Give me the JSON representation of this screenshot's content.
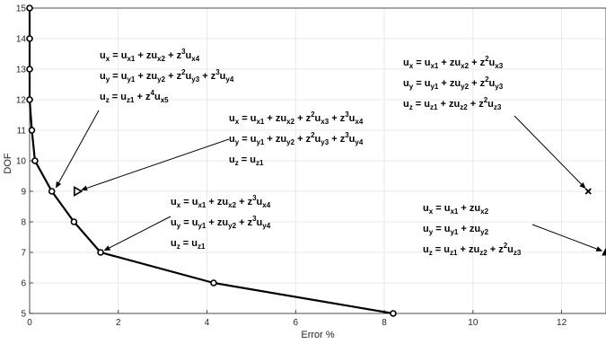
{
  "chart_data": {
    "type": "line",
    "xlabel": "Error %",
    "ylabel": "DOF",
    "xlim": [
      0,
      13
    ],
    "ylim": [
      5,
      15
    ],
    "x_ticks": [
      "0",
      "2",
      "4",
      "6",
      "8",
      "10",
      "12"
    ],
    "y_ticks": [
      "5",
      "6",
      "7",
      "8",
      "9",
      "10",
      "11",
      "12",
      "13",
      "14",
      "15"
    ],
    "grid": true,
    "series": [
      {
        "marker": "circle",
        "x": [
          8.2,
          4.15,
          1.6,
          1.0,
          0.5,
          0.12,
          0.05,
          0.0,
          0.0,
          0.0,
          0.0
        ],
        "y": [
          5,
          6,
          7,
          8,
          9,
          10,
          11,
          12,
          13,
          14,
          15
        ]
      }
    ],
    "extra_points": [
      {
        "marker": "triangle-right",
        "x": 1.08,
        "y": 9
      },
      {
        "marker": "x",
        "x": 12.6,
        "y": 9
      },
      {
        "marker": "triangle-up",
        "x": 13.0,
        "y": 7
      }
    ],
    "annotations": [
      {
        "target": [
          0.55,
          9.0
        ],
        "lines": [
          [
            [
              "u",
              ""
            ],
            [
              "x",
              "sub"
            ],
            [
              " = u",
              ""
            ],
            [
              "x1",
              "sub"
            ],
            [
              " + zu",
              ""
            ],
            [
              "x2",
              "sub"
            ],
            [
              " + z",
              ""
            ],
            [
              "3",
              "sup"
            ],
            [
              "u",
              ""
            ],
            [
              "x4",
              "sub"
            ]
          ],
          [
            [
              "u",
              ""
            ],
            [
              "y",
              "sub"
            ],
            [
              " = u",
              ""
            ],
            [
              "y1",
              "sub"
            ],
            [
              " + zu",
              ""
            ],
            [
              "y2",
              "sub"
            ],
            [
              " + z",
              ""
            ],
            [
              "2",
              "sup"
            ],
            [
              "u",
              ""
            ],
            [
              "y3",
              "sub"
            ],
            [
              " + z",
              ""
            ],
            [
              "3",
              "sup"
            ],
            [
              "u",
              ""
            ],
            [
              "y4",
              "sub"
            ]
          ],
          [
            [
              "u",
              ""
            ],
            [
              "z",
              "sub"
            ],
            [
              " = u",
              ""
            ],
            [
              "z1",
              "sub"
            ],
            [
              " + z",
              ""
            ],
            [
              "4",
              "sup"
            ],
            [
              "u",
              ""
            ],
            [
              "x5",
              "sub"
            ]
          ]
        ]
      },
      {
        "target": [
          1.08,
          9.0
        ],
        "lines": [
          [
            [
              "u",
              ""
            ],
            [
              "x",
              "sub"
            ],
            [
              " = u",
              ""
            ],
            [
              "x1",
              "sub"
            ],
            [
              " + zu",
              ""
            ],
            [
              "x2",
              "sub"
            ],
            [
              " + z",
              ""
            ],
            [
              "2",
              "sup"
            ],
            [
              "u",
              ""
            ],
            [
              "x3",
              "sub"
            ],
            [
              " + z",
              ""
            ],
            [
              "3",
              "sup"
            ],
            [
              "u",
              ""
            ],
            [
              "x4",
              "sub"
            ]
          ],
          [
            [
              "u",
              ""
            ],
            [
              "y",
              "sub"
            ],
            [
              " = u",
              ""
            ],
            [
              "y1",
              "sub"
            ],
            [
              " + zu",
              ""
            ],
            [
              "y2",
              "sub"
            ],
            [
              " + z",
              ""
            ],
            [
              "2",
              "sup"
            ],
            [
              "u",
              ""
            ],
            [
              "y3",
              "sub"
            ],
            [
              " + z",
              ""
            ],
            [
              "3",
              "sup"
            ],
            [
              "u",
              ""
            ],
            [
              "y4",
              "sub"
            ]
          ],
          [
            [
              "u",
              ""
            ],
            [
              "z",
              "sub"
            ],
            [
              " = u",
              ""
            ],
            [
              "z1",
              "sub"
            ]
          ]
        ]
      },
      {
        "target": [
          1.6,
          7.0
        ],
        "lines": [
          [
            [
              "u",
              ""
            ],
            [
              "x",
              "sub"
            ],
            [
              " = u",
              ""
            ],
            [
              "x1",
              "sub"
            ],
            [
              " + zu",
              ""
            ],
            [
              "x2",
              "sub"
            ],
            [
              " + z",
              ""
            ],
            [
              "3",
              "sup"
            ],
            [
              "u",
              ""
            ],
            [
              "x4",
              "sub"
            ]
          ],
          [
            [
              "u",
              ""
            ],
            [
              "y",
              "sub"
            ],
            [
              " = u",
              ""
            ],
            [
              "y1",
              "sub"
            ],
            [
              " + zu",
              ""
            ],
            [
              "y2",
              "sub"
            ],
            [
              " + z",
              ""
            ],
            [
              "3",
              "sup"
            ],
            [
              "u",
              ""
            ],
            [
              "y4",
              "sub"
            ]
          ],
          [
            [
              "u",
              ""
            ],
            [
              "z",
              "sub"
            ],
            [
              " = u",
              ""
            ],
            [
              "z1",
              "sub"
            ]
          ]
        ]
      },
      {
        "target": [
          12.6,
          9.0
        ],
        "lines": [
          [
            [
              "u",
              ""
            ],
            [
              "x",
              "sub"
            ],
            [
              " = u",
              ""
            ],
            [
              "x1",
              "sub"
            ],
            [
              " + zu",
              ""
            ],
            [
              "x2",
              "sub"
            ],
            [
              " + z",
              ""
            ],
            [
              "2",
              "sup"
            ],
            [
              "u",
              ""
            ],
            [
              "x3",
              "sub"
            ]
          ],
          [
            [
              "u",
              ""
            ],
            [
              "y",
              "sub"
            ],
            [
              " = u",
              ""
            ],
            [
              "y1",
              "sub"
            ],
            [
              " + zu",
              ""
            ],
            [
              "y2",
              "sub"
            ],
            [
              " + z",
              ""
            ],
            [
              "2",
              "sup"
            ],
            [
              "u",
              ""
            ],
            [
              "y3",
              "sub"
            ]
          ],
          [
            [
              "u",
              ""
            ],
            [
              "z",
              "sub"
            ],
            [
              " = u",
              ""
            ],
            [
              "z1",
              "sub"
            ],
            [
              " + zu",
              ""
            ],
            [
              "z2",
              "sub"
            ],
            [
              " + z",
              ""
            ],
            [
              "2",
              "sup"
            ],
            [
              "u",
              ""
            ],
            [
              "z3",
              "sub"
            ]
          ]
        ]
      },
      {
        "target": [
          13.0,
          7.0
        ],
        "lines": [
          [
            [
              "u",
              ""
            ],
            [
              "x",
              "sub"
            ],
            [
              " = u",
              ""
            ],
            [
              "x1",
              "sub"
            ],
            [
              " + zu",
              ""
            ],
            [
              "x2",
              "sub"
            ]
          ],
          [
            [
              "u",
              ""
            ],
            [
              "y",
              "sub"
            ],
            [
              " = u",
              ""
            ],
            [
              "y1",
              "sub"
            ],
            [
              " + zu",
              ""
            ],
            [
              "y2",
              "sub"
            ]
          ],
          [
            [
              "u",
              ""
            ],
            [
              "z",
              "sub"
            ],
            [
              " = u",
              ""
            ],
            [
              "z1",
              "sub"
            ],
            [
              " + zu",
              ""
            ],
            [
              "z2",
              "sub"
            ],
            [
              " + z",
              ""
            ],
            [
              "2",
              "sup"
            ],
            [
              "u",
              ""
            ],
            [
              "z3",
              "sub"
            ]
          ]
        ]
      }
    ]
  }
}
